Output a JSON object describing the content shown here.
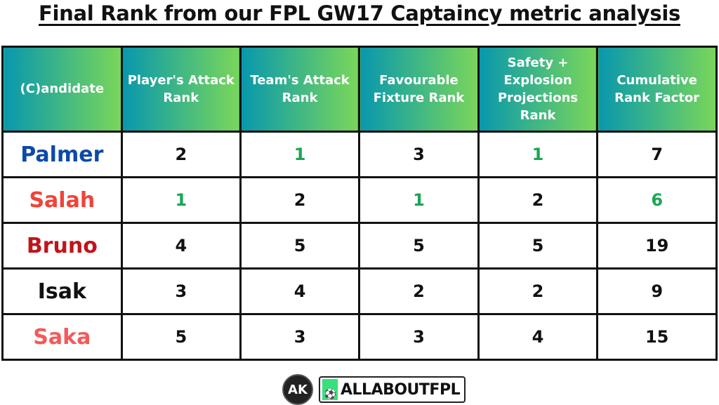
{
  "title": "Final Rank from our FPL GW17 Captaincy metric analysis",
  "chart_data": {
    "type": "table",
    "columns": [
      "(C)andidate",
      "Player's Attack Rank",
      "Team's Attack Rank",
      "Favourable Fixture Rank",
      "Safety + Explosion Projections Rank",
      "Cumulative Rank Factor"
    ],
    "rows": [
      {
        "name": "Palmer",
        "name_color": "#0b4aa8",
        "values": [
          "2",
          "1",
          "3",
          "1",
          "7"
        ],
        "colors": [
          "#111",
          "#1aa655",
          "#111",
          "#1aa655",
          "#111"
        ]
      },
      {
        "name": "Salah",
        "name_color": "#f0433a",
        "values": [
          "1",
          "2",
          "1",
          "2",
          "6"
        ],
        "colors": [
          "#1aa655",
          "#111",
          "#1aa655",
          "#111",
          "#1aa655"
        ]
      },
      {
        "name": "Bruno",
        "name_color": "#c0141b",
        "values": [
          "4",
          "5",
          "5",
          "5",
          "19"
        ],
        "colors": [
          "#111",
          "#111",
          "#111",
          "#111",
          "#111"
        ]
      },
      {
        "name": "Isak",
        "name_color": "#111111",
        "values": [
          "3",
          "4",
          "2",
          "2",
          "9"
        ],
        "colors": [
          "#111",
          "#111",
          "#111",
          "#111",
          "#111"
        ]
      },
      {
        "name": "Saka",
        "name_color": "#f25a5a",
        "values": [
          "5",
          "3",
          "3",
          "4",
          "15"
        ],
        "colors": [
          "#111",
          "#111",
          "#111",
          "#111",
          "#111"
        ]
      }
    ],
    "header_gradient": [
      "#0898ad",
      "#7ad65a"
    ]
  },
  "logos": {
    "ak": "AK",
    "brand": "ALLABOUTFPL"
  }
}
